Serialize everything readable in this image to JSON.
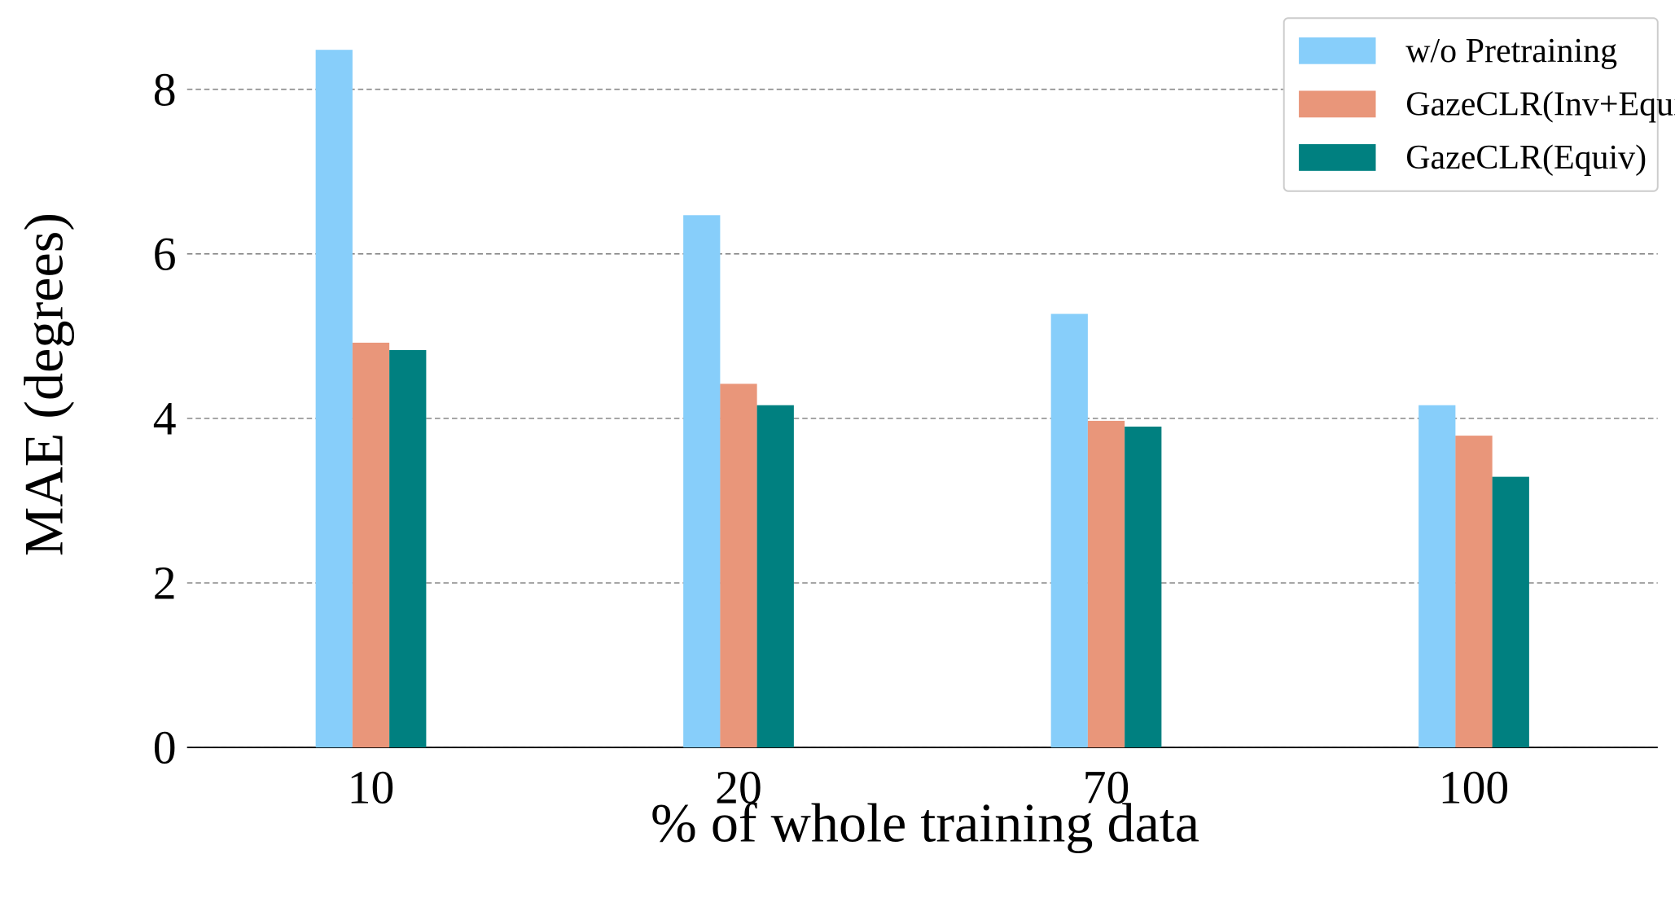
{
  "chart_data": {
    "type": "bar",
    "x_label": "% of whole training data",
    "y_label": "MAE (degrees)",
    "categories": [
      "10",
      "20",
      "70",
      "100"
    ],
    "series": [
      {
        "name": "w/o Pretraining",
        "color": "#87cefa",
        "values": [
          8.48,
          6.47,
          5.27,
          4.16
        ]
      },
      {
        "name": "GazeCLR(Inv+Equiv)",
        "color": "#e9967a",
        "values": [
          4.92,
          4.42,
          3.97,
          3.79
        ]
      },
      {
        "name": "GazeCLR(Equiv)",
        "color": "#008080",
        "values": [
          4.83,
          4.16,
          3.9,
          3.29
        ]
      }
    ],
    "ylim": [
      0,
      8.8
    ],
    "yticks": [
      0,
      2,
      4,
      6,
      8
    ],
    "grid": true,
    "legend": "upper right"
  }
}
